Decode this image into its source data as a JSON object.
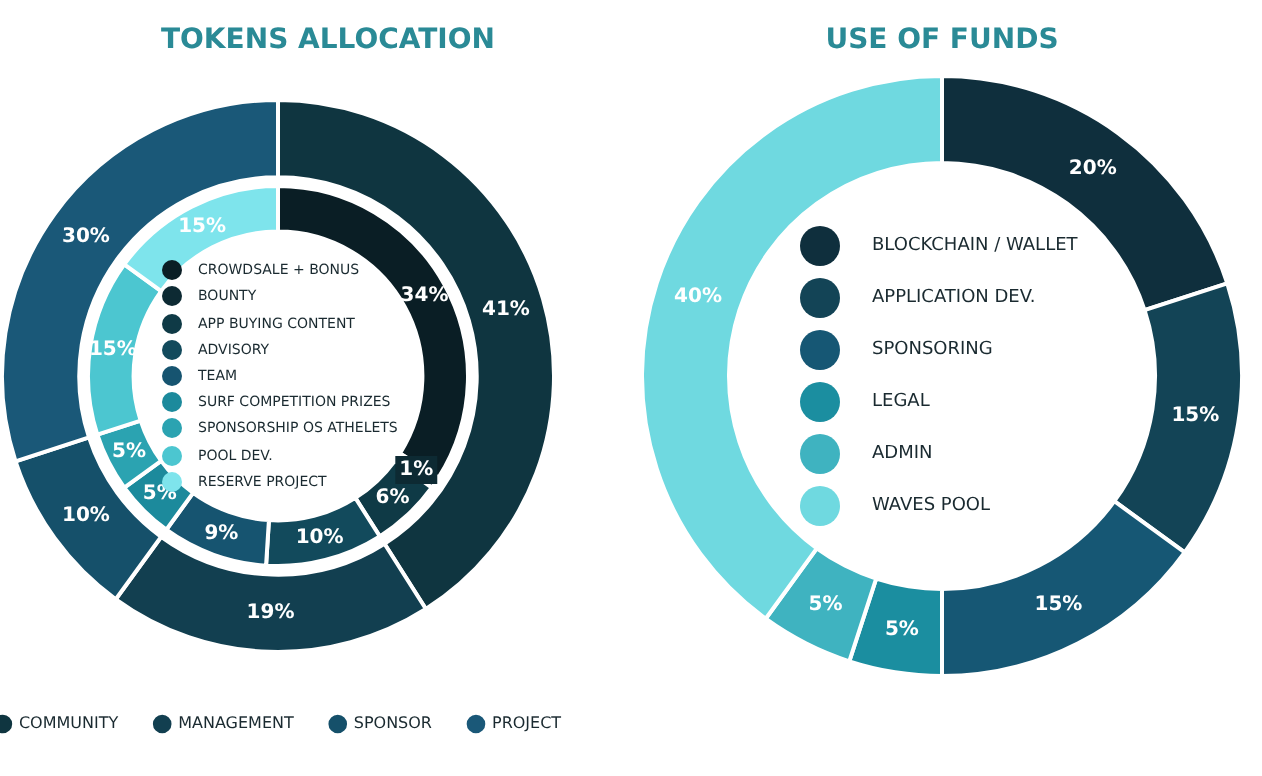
{
  "chart_data": [
    {
      "type": "donut",
      "title": "TOKENS ALLOCATION",
      "categories": [
        "COMMUNITY",
        "MANAGEMENT",
        "SPONSOR",
        "PROJECT"
      ],
      "values": [
        41,
        19,
        10,
        30
      ],
      "colors": [
        "#0f3540",
        "#123f50",
        "#15506a",
        "#1a5878"
      ],
      "value_labels": [
        "41%",
        "19%",
        "10%",
        "30%"
      ],
      "legend": "bottom"
    },
    {
      "type": "donut",
      "categories": [
        "CROWDSALE + BONUS",
        "BOUNTY",
        "APP BUYING CONTENT",
        "ADVISORY",
        "TEAM",
        "SURF COMPETITION PRIZES",
        "SPONSORSHIP OS ATHELETS",
        "POOL DEV.",
        "RESERVE PROJECT"
      ],
      "values": [
        34,
        1,
        6,
        10,
        9,
        5,
        5,
        15,
        15
      ],
      "colors": [
        "#0a1e25",
        "#0d2a33",
        "#0f3a46",
        "#124a5c",
        "#165470",
        "#1c8a9c",
        "#2ba3b1",
        "#4cc6d0",
        "#7ee4ec"
      ],
      "value_labels": [
        "34%",
        "1%",
        "6%",
        "10%",
        "9%",
        "5%",
        "5%",
        "15%",
        "15%"
      ],
      "legend": "center"
    },
    {
      "type": "donut",
      "title": "USE OF FUNDS",
      "categories": [
        "BLOCKCHAIN / WALLET",
        "APPLICATION DEV.",
        "SPONSORING",
        "LEGAL",
        "ADMIN",
        "WAVES POOL"
      ],
      "values": [
        20,
        15,
        15,
        5,
        5,
        40
      ],
      "colors": [
        "#0f2f3d",
        "#134456",
        "#165774",
        "#1b8ea0",
        "#3fb3c0",
        "#6fd9e0"
      ],
      "value_labels": [
        "20%",
        "15%",
        "15%",
        "5%",
        "5%",
        "40%"
      ],
      "legend": "center"
    }
  ]
}
